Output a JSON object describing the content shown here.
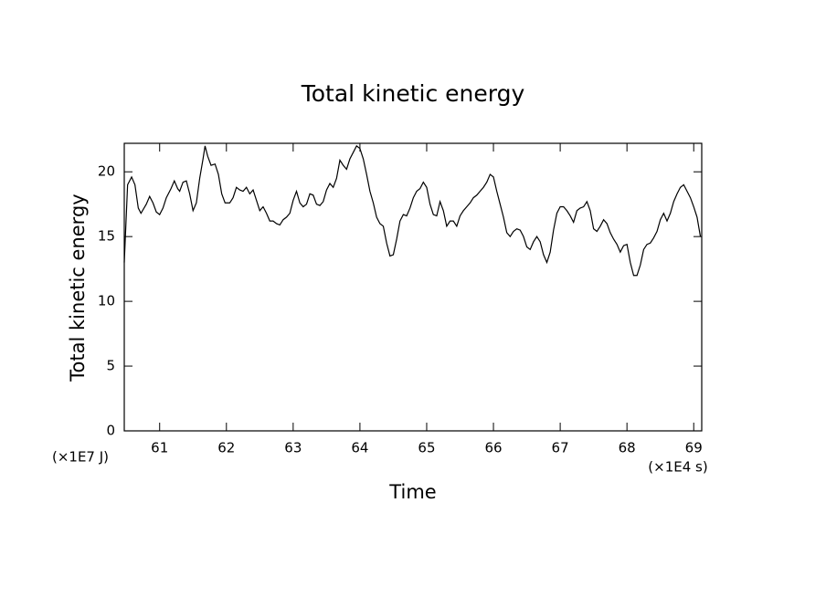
{
  "chart_data": {
    "type": "line",
    "title": "Total kinetic energy",
    "x_label": "Time",
    "y_label": "Total kinetic energy",
    "x_unit": "(×1E4 s)",
    "y_unit": "(×1E7 J)",
    "color": "#000000",
    "xlim": [
      60.47,
      69.12
    ],
    "ylim": [
      0,
      22.2
    ],
    "xticks": [
      61,
      62,
      63,
      64,
      65,
      66,
      67,
      68,
      69
    ],
    "yticks": [
      0,
      5,
      10,
      15,
      20
    ],
    "x": [
      60.47,
      60.52,
      60.58,
      60.63,
      60.68,
      60.72,
      60.8,
      60.85,
      60.9,
      60.95,
      61.0,
      61.05,
      61.1,
      61.17,
      61.22,
      61.27,
      61.3,
      61.35,
      61.4,
      61.45,
      61.5,
      61.55,
      61.6,
      61.65,
      61.68,
      61.72,
      61.77,
      61.83,
      61.88,
      61.93,
      61.98,
      62.05,
      62.1,
      62.15,
      62.2,
      62.25,
      62.3,
      62.35,
      62.4,
      62.45,
      62.5,
      62.55,
      62.6,
      62.65,
      62.7,
      62.75,
      62.8,
      62.85,
      62.9,
      62.95,
      63.0,
      63.05,
      63.1,
      63.15,
      63.2,
      63.25,
      63.3,
      63.35,
      63.4,
      63.45,
      63.5,
      63.55,
      63.6,
      63.65,
      63.7,
      63.75,
      63.8,
      63.85,
      63.9,
      63.95,
      64.0,
      64.05,
      64.1,
      64.15,
      64.2,
      64.25,
      64.3,
      64.35,
      64.4,
      64.45,
      64.5,
      64.55,
      64.6,
      64.65,
      64.7,
      64.75,
      64.8,
      64.85,
      64.9,
      64.95,
      65.0,
      65.05,
      65.1,
      65.15,
      65.2,
      65.25,
      65.3,
      65.35,
      65.4,
      65.45,
      65.5,
      65.55,
      65.6,
      65.65,
      65.7,
      65.75,
      65.8,
      65.85,
      65.9,
      65.95,
      66.0,
      66.05,
      66.1,
      66.15,
      66.2,
      66.25,
      66.3,
      66.35,
      66.4,
      66.45,
      66.5,
      66.55,
      66.6,
      66.65,
      66.7,
      66.75,
      66.8,
      66.85,
      66.9,
      66.95,
      67.0,
      67.05,
      67.1,
      67.15,
      67.2,
      67.25,
      67.3,
      67.35,
      67.4,
      67.45,
      67.5,
      67.55,
      67.6,
      67.65,
      67.7,
      67.75,
      67.8,
      67.85,
      67.9,
      67.95,
      68.0,
      68.05,
      68.1,
      68.15,
      68.2,
      68.25,
      68.3,
      68.35,
      68.4,
      68.45,
      68.5,
      68.55,
      68.6,
      68.65,
      68.7,
      68.75,
      68.8,
      68.85,
      68.9,
      68.95,
      69.0,
      69.05,
      69.1
    ],
    "values": [
      13,
      19,
      19.6,
      19,
      17.2,
      16.8,
      17.5,
      18.1,
      17.6,
      16.9,
      16.7,
      17.2,
      18,
      18.7,
      19.3,
      18.7,
      18.5,
      19.2,
      19.3,
      18.3,
      17,
      17.6,
      19.5,
      21,
      22,
      21.2,
      20.5,
      20.6,
      19.8,
      18.3,
      17.6,
      17.6,
      18,
      18.8,
      18.6,
      18.5,
      18.8,
      18.3,
      18.6,
      17.8,
      17,
      17.3,
      16.8,
      16.2,
      16.2,
      16,
      15.9,
      16.3,
      16.5,
      16.8,
      17.8,
      18.5,
      17.6,
      17.3,
      17.5,
      18.3,
      18.2,
      17.5,
      17.4,
      17.7,
      18.6,
      19.1,
      18.8,
      19.5,
      20.9,
      20.5,
      20.2,
      21,
      21.5,
      22,
      21.8,
      21,
      19.8,
      18.5,
      17.6,
      16.5,
      16,
      15.8,
      14.5,
      13.5,
      13.6,
      14.8,
      16.2,
      16.7,
      16.6,
      17.2,
      18,
      18.5,
      18.7,
      19.2,
      18.8,
      17.5,
      16.7,
      16.6,
      17.7,
      17,
      15.8,
      16.2,
      16.2,
      15.8,
      16.6,
      17,
      17.3,
      17.6,
      18,
      18.2,
      18.5,
      18.8,
      19.2,
      19.8,
      19.6,
      18.5,
      17.5,
      16.5,
      15.3,
      15,
      15.4,
      15.6,
      15.5,
      15,
      14.2,
      14,
      14.6,
      15,
      14.6,
      13.6,
      13,
      13.8,
      15.5,
      16.8,
      17.3,
      17.3,
      17,
      16.6,
      16.1,
      17,
      17.2,
      17.3,
      17.7,
      17,
      15.6,
      15.4,
      15.8,
      16.3,
      16,
      15.3,
      14.8,
      14.4,
      13.8,
      14.3,
      14.4,
      13,
      12,
      12,
      12.8,
      14,
      14.4,
      14.5,
      14.9,
      15.4,
      16.3,
      16.8,
      16.2,
      16.8,
      17.7,
      18.3,
      18.8,
      19,
      18.5,
      18,
      17.3,
      16.5,
      15
    ]
  }
}
